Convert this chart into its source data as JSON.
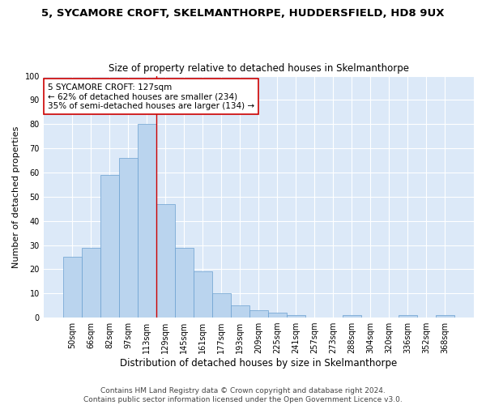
{
  "title": "5, SYCAMORE CROFT, SKELMANTHORPE, HUDDERSFIELD, HD8 9UX",
  "subtitle": "Size of property relative to detached houses in Skelmanthorpe",
  "xlabel": "Distribution of detached houses by size in Skelmanthorpe",
  "ylabel": "Number of detached properties",
  "bar_labels": [
    "50sqm",
    "66sqm",
    "82sqm",
    "97sqm",
    "113sqm",
    "129sqm",
    "145sqm",
    "161sqm",
    "177sqm",
    "193sqm",
    "209sqm",
    "225sqm",
    "241sqm",
    "257sqm",
    "273sqm",
    "288sqm",
    "304sqm",
    "320sqm",
    "336sqm",
    "352sqm",
    "368sqm"
  ],
  "bar_heights": [
    25,
    29,
    59,
    66,
    80,
    47,
    29,
    19,
    10,
    5,
    3,
    2,
    1,
    0,
    0,
    1,
    0,
    0,
    1,
    0,
    1
  ],
  "bar_color": "#bad4ee",
  "bar_edge_color": "#6aa0d0",
  "vline_x": 4.5,
  "vline_color": "#cc0000",
  "ylim": [
    0,
    100
  ],
  "yticks": [
    0,
    10,
    20,
    30,
    40,
    50,
    60,
    70,
    80,
    90,
    100
  ],
  "annotation_title": "5 SYCAMORE CROFT: 127sqm",
  "annotation_line1": "← 62% of detached houses are smaller (234)",
  "annotation_line2": "35% of semi-detached houses are larger (134) →",
  "annotation_box_facecolor": "#ffffff",
  "annotation_box_edgecolor": "#cc0000",
  "footer1": "Contains HM Land Registry data © Crown copyright and database right 2024.",
  "footer2": "Contains public sector information licensed under the Open Government Licence v3.0.",
  "fig_bg_color": "#ffffff",
  "plot_bg_color": "#dce9f8",
  "grid_color": "#ffffff",
  "title_fontsize": 9.5,
  "subtitle_fontsize": 8.5,
  "xlabel_fontsize": 8.5,
  "ylabel_fontsize": 8,
  "tick_fontsize": 7,
  "annotation_fontsize": 7.5,
  "footer_fontsize": 6.5
}
